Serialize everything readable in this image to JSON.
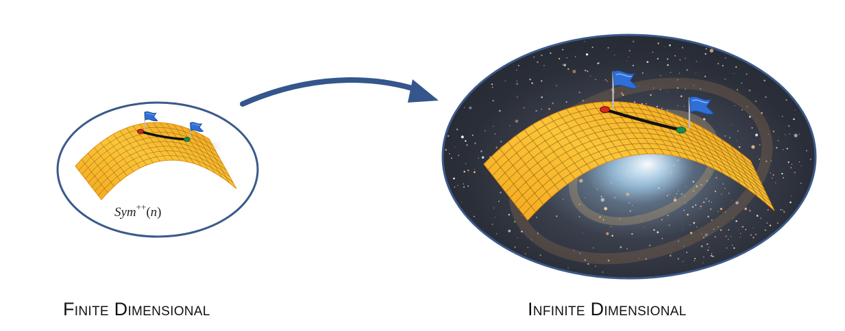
{
  "finite": {
    "caption": "Finite Dimensional",
    "manifold_label": {
      "base": "Sym",
      "superscript": "++",
      "open": "(",
      "arg": "n",
      "close": ")"
    }
  },
  "infinite": {
    "caption": "Infinite Dimensional"
  },
  "colors": {
    "ellipse_border": "#3a5a8a",
    "arrow": "#34568c",
    "surface": "#f6b52a",
    "surface_dark": "#e08e10",
    "grid": "#7a5208",
    "geodesic": "#111111",
    "start_point": "#d22a1e",
    "end_point": "#1f8a4c",
    "flag": "#2f6fd6"
  }
}
